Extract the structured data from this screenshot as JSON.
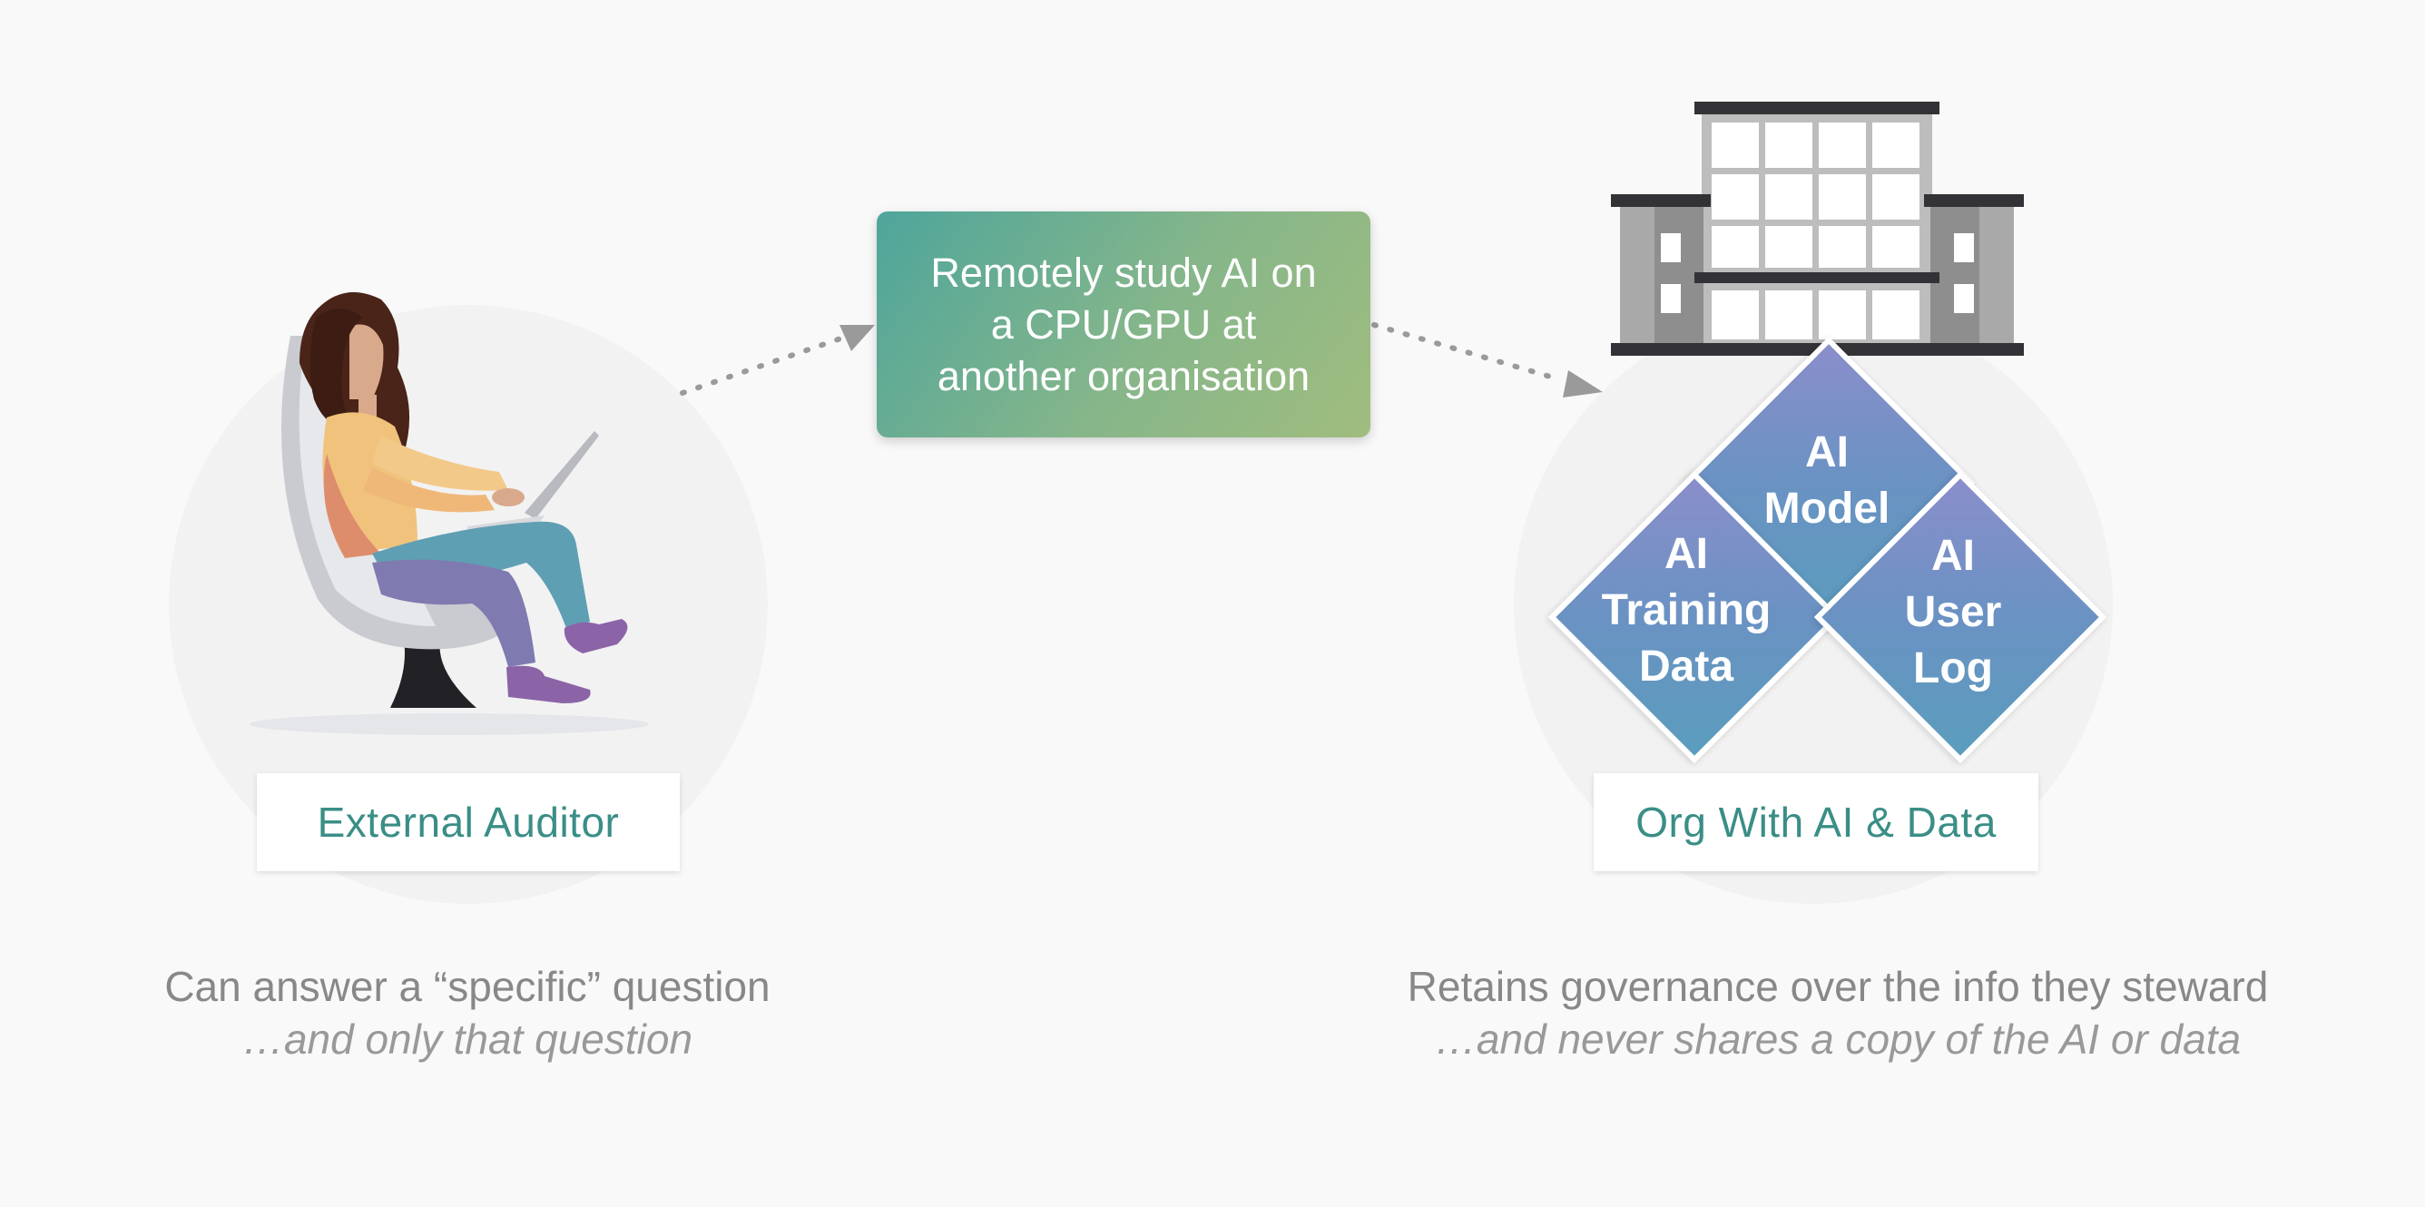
{
  "center_box": {
    "lines": [
      "Remotely study AI on",
      "a CPU/GPU at",
      "another organisation"
    ]
  },
  "left": {
    "label": "External Auditor",
    "caption": "Can answer a “specific” question",
    "caption_sub": "…and only that question"
  },
  "right": {
    "label": "Org With AI & Data",
    "caption": "Retains governance over the info they steward",
    "caption_sub": "…and never shares a copy of the AI or data",
    "diamonds": {
      "model": [
        "AI",
        "Model"
      ],
      "training": [
        "AI",
        "Training",
        "Data"
      ],
      "userlog": [
        "AI",
        "User",
        "Log"
      ]
    }
  },
  "colors": {
    "label_text": "#3a8e86",
    "box_gradient_start": "#4ea59b",
    "box_gradient_end": "#a0bd7e",
    "diamond_start": "#8a8ecb",
    "diamond_end": "#5b9dbd",
    "arrow": "#9a9a9a"
  },
  "icons": [
    "person-with-laptop-icon",
    "office-building-icon"
  ]
}
